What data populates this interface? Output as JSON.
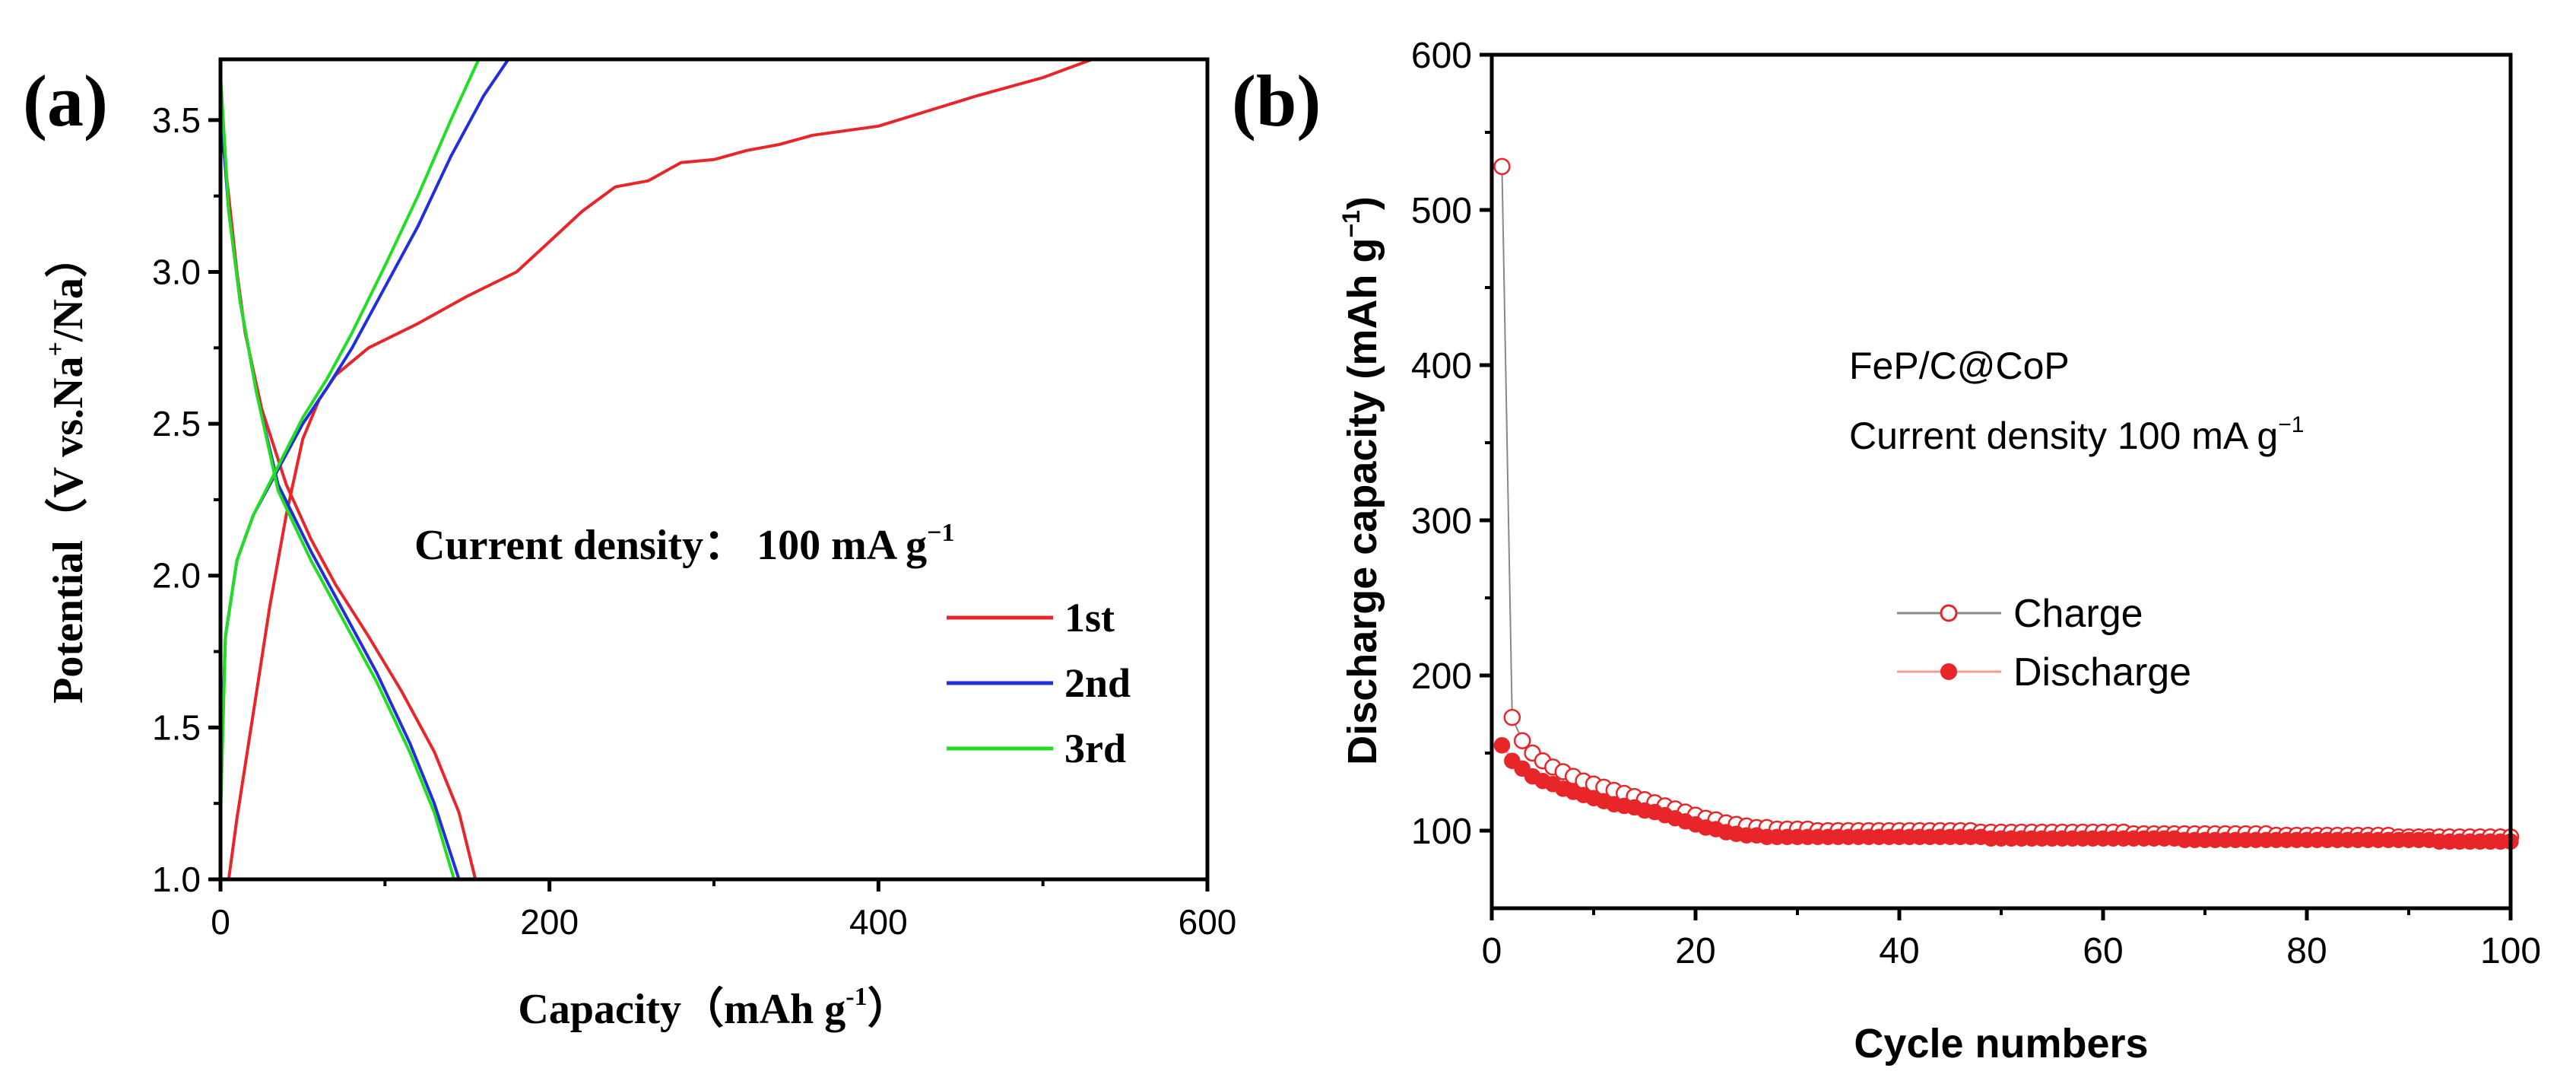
{
  "chart_data": [
    {
      "panel_label": "(a)",
      "type": "line",
      "xlabel_main": "Capacity（mAh g",
      "xlabel_sup": "-1",
      "xlabel_end": "）",
      "ylabel_main": "Potential（V vs.Na",
      "ylabel_sup": "+",
      "ylabel_end": "/Na）",
      "xlim": [
        0,
        600
      ],
      "ylim": [
        1.0,
        3.7
      ],
      "xticks": [
        "0",
        "200",
        "400",
        "600"
      ],
      "yticks": [
        "1.0",
        "1.5",
        "2.0",
        "2.5",
        "3.0",
        "3.5"
      ],
      "annotation_main": "Current density： 100 mA g",
      "annotation_sup": "−1",
      "legend": [
        "1st",
        "2nd",
        "3rd"
      ],
      "colors": {
        "1st": "#e8262a",
        "2nd": "#1f2fdc",
        "3rd": "#22dd22",
        "axis": "#000000"
      },
      "series": [
        {
          "name": "1st",
          "charge": [
            [
              5,
              1.0
            ],
            [
              10,
              1.2
            ],
            [
              20,
              1.55
            ],
            [
              30,
              1.9
            ],
            [
              40,
              2.2
            ],
            [
              50,
              2.45
            ],
            [
              60,
              2.58
            ],
            [
              70,
              2.66
            ],
            [
              90,
              2.75
            ],
            [
              120,
              2.83
            ],
            [
              150,
              2.92
            ],
            [
              180,
              3.0
            ],
            [
              200,
              3.1
            ],
            [
              220,
              3.2
            ],
            [
              240,
              3.28
            ],
            [
              260,
              3.3
            ],
            [
              280,
              3.36
            ],
            [
              300,
              3.37
            ],
            [
              320,
              3.4
            ],
            [
              340,
              3.42
            ],
            [
              360,
              3.45
            ],
            [
              400,
              3.48
            ],
            [
              430,
              3.53
            ],
            [
              460,
              3.58
            ],
            [
              500,
              3.64
            ],
            [
              530,
              3.7
            ]
          ],
          "discharge": [
            [
              0,
              3.5
            ],
            [
              5,
              3.25
            ],
            [
              10,
              3.0
            ],
            [
              15,
              2.8
            ],
            [
              25,
              2.55
            ],
            [
              40,
              2.3
            ],
            [
              55,
              2.12
            ],
            [
              70,
              1.97
            ],
            [
              90,
              1.8
            ],
            [
              110,
              1.62
            ],
            [
              130,
              1.42
            ],
            [
              145,
              1.22
            ],
            [
              155,
              1.0
            ]
          ]
        },
        {
          "name": "2nd",
          "charge": [
            [
              0,
              1.3
            ],
            [
              3,
              1.8
            ],
            [
              10,
              2.05
            ],
            [
              20,
              2.2
            ],
            [
              35,
              2.35
            ],
            [
              50,
              2.5
            ],
            [
              65,
              2.62
            ],
            [
              80,
              2.75
            ],
            [
              100,
              2.95
            ],
            [
              120,
              3.15
            ],
            [
              140,
              3.38
            ],
            [
              160,
              3.58
            ],
            [
              175,
              3.7
            ]
          ],
          "discharge": [
            [
              0,
              3.55
            ],
            [
              5,
              3.2
            ],
            [
              12,
              2.9
            ],
            [
              22,
              2.6
            ],
            [
              35,
              2.3
            ],
            [
              55,
              2.08
            ],
            [
              75,
              1.88
            ],
            [
              95,
              1.68
            ],
            [
              115,
              1.45
            ],
            [
              130,
              1.25
            ],
            [
              145,
              1.0
            ]
          ]
        },
        {
          "name": "3rd",
          "charge": [
            [
              0,
              1.2
            ],
            [
              3,
              1.8
            ],
            [
              10,
              2.05
            ],
            [
              20,
              2.2
            ],
            [
              35,
              2.36
            ],
            [
              50,
              2.52
            ],
            [
              65,
              2.65
            ],
            [
              80,
              2.8
            ],
            [
              100,
              3.02
            ],
            [
              120,
              3.25
            ],
            [
              140,
              3.5
            ],
            [
              157,
              3.7
            ]
          ],
          "discharge": [
            [
              0,
              3.65
            ],
            [
              5,
              3.2
            ],
            [
              12,
              2.9
            ],
            [
              22,
              2.6
            ],
            [
              35,
              2.28
            ],
            [
              55,
              2.05
            ],
            [
              75,
              1.85
            ],
            [
              95,
              1.65
            ],
            [
              115,
              1.42
            ],
            [
              130,
              1.22
            ],
            [
              142,
              1.0
            ]
          ]
        }
      ]
    },
    {
      "panel_label": "(b)",
      "type": "scatter",
      "xlabel": "Cycle numbers",
      "ylabel_main": "Discharge capacity (mAh g",
      "ylabel_sup": "−1",
      "ylabel_end": ")",
      "xlim": [
        0,
        100
      ],
      "ylim": [
        50,
        600
      ],
      "xticks": [
        "0",
        "20",
        "40",
        "60",
        "80",
        "100"
      ],
      "yticks": [
        "100",
        "200",
        "300",
        "400",
        "500",
        "600"
      ],
      "annotation_line1": "FeP/C@CoP",
      "annotation_line2_main": "Current density 100 mA g",
      "annotation_line2_sup": "−1",
      "legend": [
        "Charge",
        "Discharge"
      ],
      "colors": {
        "marker": "#e8262a",
        "charge_line": "#888888",
        "discharge_line": "#ff9999"
      },
      "x": [
        1,
        2,
        3,
        4,
        5,
        6,
        7,
        8,
        9,
        10,
        11,
        12,
        13,
        14,
        15,
        16,
        17,
        18,
        19,
        20,
        21,
        22,
        23,
        24,
        25,
        26,
        27,
        28,
        29,
        30,
        31,
        32,
        33,
        34,
        35,
        36,
        37,
        38,
        39,
        40,
        41,
        42,
        43,
        44,
        45,
        46,
        47,
        48,
        49,
        50,
        51,
        52,
        53,
        54,
        55,
        56,
        57,
        58,
        59,
        60,
        61,
        62,
        63,
        64,
        65,
        66,
        67,
        68,
        69,
        70,
        71,
        72,
        73,
        74,
        75,
        76,
        77,
        78,
        79,
        80,
        81,
        82,
        83,
        84,
        85,
        86,
        87,
        88,
        89,
        90,
        91,
        92,
        93,
        94,
        95,
        96,
        97,
        98,
        99,
        100
      ],
      "series": [
        {
          "name": "Charge",
          "values": [
            528,
            173,
            158,
            150,
            145,
            141,
            138,
            135,
            132,
            130,
            128,
            126,
            124,
            122,
            120,
            118,
            116,
            114,
            112,
            110,
            108,
            107,
            105,
            104,
            103,
            102,
            102,
            101,
            101,
            101,
            101,
            100,
            100,
            100,
            100,
            100,
            100,
            100,
            100,
            100,
            100,
            100,
            100,
            100,
            100,
            100,
            100,
            99,
            99,
            99,
            99,
            99,
            99,
            99,
            99,
            99,
            99,
            99,
            99,
            99,
            99,
            99,
            98,
            98,
            98,
            98,
            98,
            98,
            98,
            98,
            98,
            98,
            98,
            98,
            98,
            98,
            97,
            97,
            97,
            97,
            97,
            97,
            97,
            97,
            97,
            97,
            97,
            97,
            96,
            96,
            96,
            96,
            96,
            96,
            96,
            96,
            96,
            96,
            96,
            96
          ]
        },
        {
          "name": "Discharge",
          "values": [
            155,
            145,
            140,
            135,
            132,
            130,
            127,
            125,
            123,
            121,
            119,
            117,
            116,
            115,
            113,
            112,
            110,
            108,
            106,
            104,
            102,
            101,
            99,
            98,
            97,
            97,
            96,
            96,
            96,
            96,
            96,
            96,
            96,
            96,
            96,
            96,
            96,
            96,
            96,
            96,
            96,
            96,
            96,
            96,
            96,
            96,
            96,
            96,
            95,
            95,
            95,
            95,
            95,
            95,
            95,
            95,
            95,
            95,
            95,
            95,
            95,
            95,
            95,
            95,
            95,
            95,
            95,
            94,
            94,
            94,
            94,
            94,
            94,
            94,
            94,
            94,
            94,
            94,
            94,
            94,
            94,
            94,
            94,
            94,
            94,
            94,
            94,
            94,
            94,
            94,
            94,
            94,
            93,
            93,
            93,
            93,
            93,
            93,
            93,
            93
          ]
        }
      ]
    }
  ]
}
